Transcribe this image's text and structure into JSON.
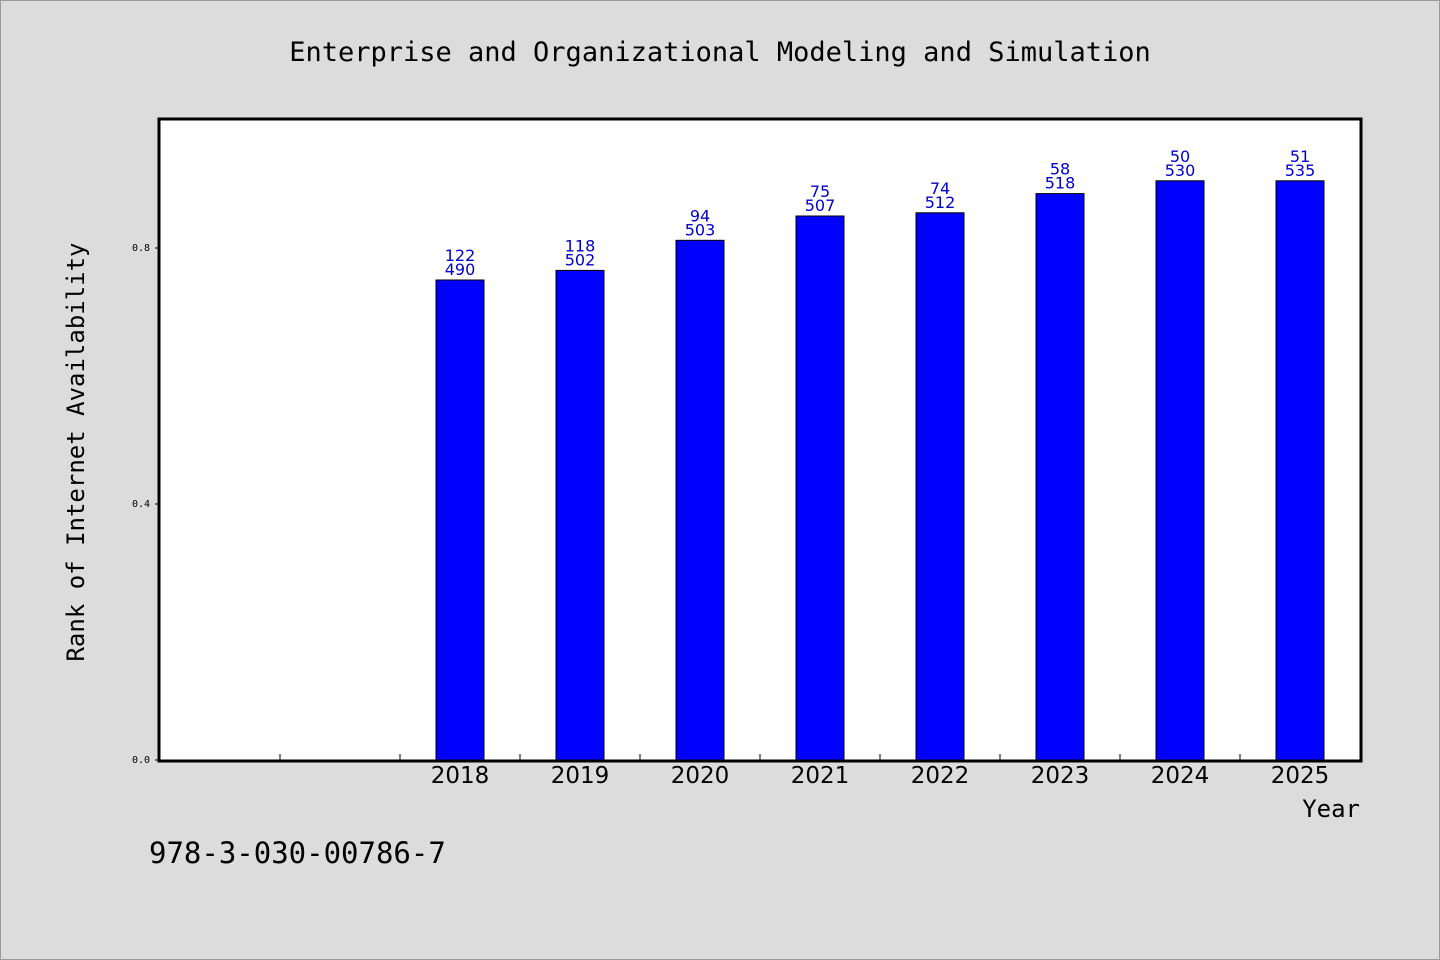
{
  "chart_data": {
    "type": "bar",
    "title": "Enterprise and Organizational Modeling and Simulation",
    "xlabel": "Year",
    "ylabel": "Rank of Internet Availability",
    "ylim": [
      0,
      1.0
    ],
    "yticks": [
      "0.0",
      "0.4",
      "0.8"
    ],
    "categories": [
      "2018",
      "2019",
      "2020",
      "2021",
      "2022",
      "2023",
      "2024",
      "2025"
    ],
    "values": [
      0.75,
      0.765,
      0.812,
      0.85,
      0.855,
      0.885,
      0.905,
      0.905
    ],
    "labels_top": [
      "122",
      "118",
      "94",
      "75",
      "74",
      "58",
      "50",
      "51"
    ],
    "labels_bottom": [
      "490",
      "502",
      "503",
      "507",
      "512",
      "518",
      "530",
      "535"
    ],
    "bar_color": "#0000ff",
    "label_color": "#0000cc",
    "grid": false,
    "legend": "none"
  },
  "footer_text": "978-3-030-00786-7"
}
